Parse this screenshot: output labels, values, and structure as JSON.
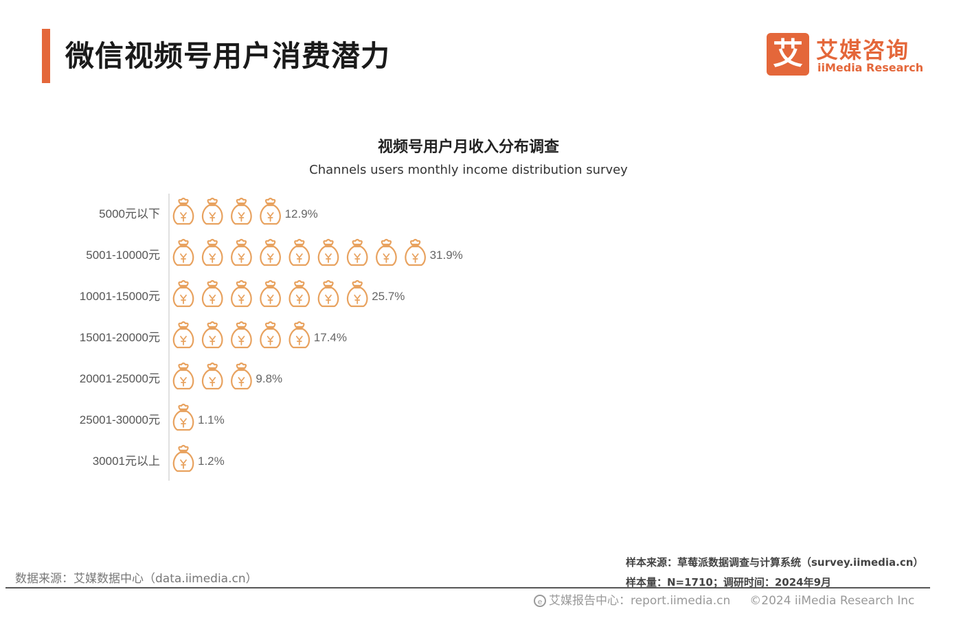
{
  "header": {
    "title": "微信视频号用户消费潜力",
    "logo_mark": "艾",
    "logo_cn": "艾媒咨询",
    "logo_en": "iiMedia Research",
    "accent_color": "#e4673a"
  },
  "chart_data": {
    "type": "pictograph-bar",
    "title": "视频号用户月收入分布调查",
    "subtitle": "Channels users monthly income distribution survey",
    "unit": "%",
    "icon": "money-bag-icon",
    "icon_color": "#e8a25f",
    "categories": [
      "5000元以下",
      "5001-10000元",
      "10001-15000元",
      "15001-20000元",
      "20001-25000元",
      "25001-30000元",
      "30001元以上"
    ],
    "values": [
      12.9,
      31.9,
      25.7,
      17.4,
      9.8,
      1.1,
      1.2
    ],
    "value_labels": [
      "12.9%",
      "31.9%",
      "25.7%",
      "17.4%",
      "9.8%",
      "1.1%",
      "1.2%"
    ]
  },
  "footer": {
    "data_source": "数据来源：艾媒数据中心（data.iimedia.cn）",
    "sample_source": "样本来源：草莓派数据调查与计算系统（survey.iimedia.cn）",
    "sample_size": "样本量：N=1710；调研时间：2024年9月",
    "report_center": "艾媒报告中心：report.iimedia.cn",
    "copyright": "©2024  iiMedia Research Inc"
  }
}
